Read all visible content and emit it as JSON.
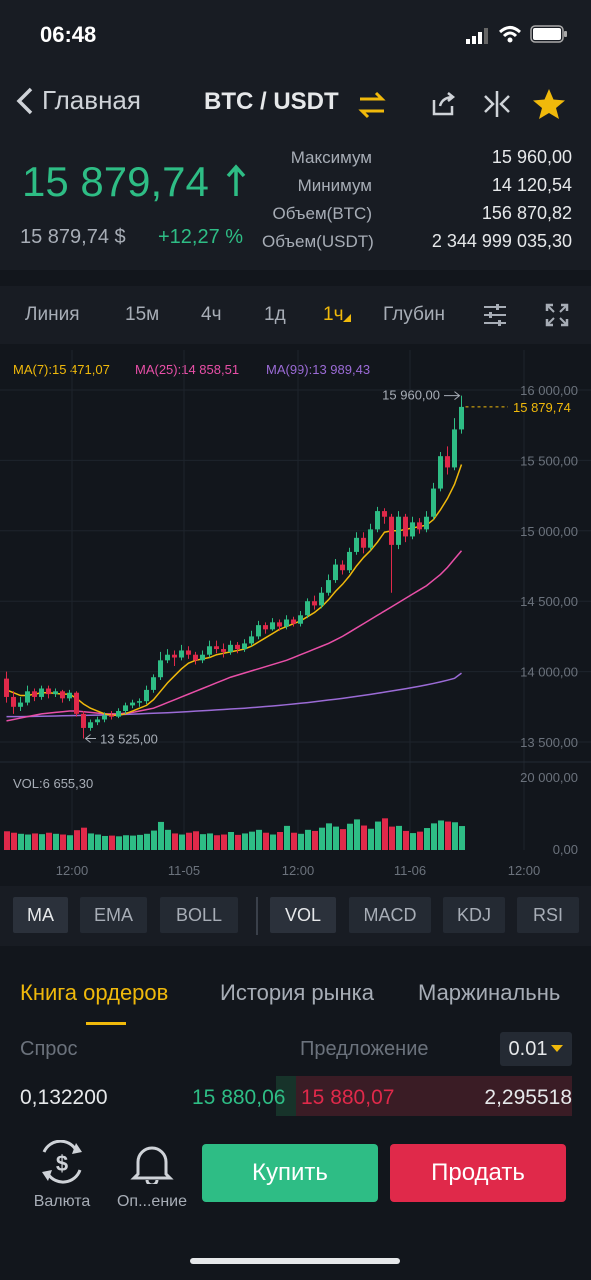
{
  "status_bar": {
    "time": "06:48"
  },
  "nav": {
    "back_label": "Главная",
    "pair": "BTC / USDT"
  },
  "ticker": {
    "last_price": "15 879,74",
    "fiat_price": "15 879,74 $",
    "change": "+12,27 %",
    "stats": [
      {
        "label": "Максимум",
        "value": "15 960,00"
      },
      {
        "label": "Минимум",
        "value": "14 120,54"
      },
      {
        "label": "Объем(BTC)",
        "value": "156 870,82"
      },
      {
        "label": "Объем(USDT)",
        "value": "2 344 999 035,30"
      }
    ]
  },
  "timeframes": [
    "Линия",
    "15м",
    "4ч",
    "1д",
    "1ч",
    "Глубин"
  ],
  "active_timeframe": "1ч",
  "ma_legend": {
    "ma7": "MA(7):15 471,07",
    "ma25": "MA(25):14 858,51",
    "ma99": "MA(99):13 989,43"
  },
  "colors": {
    "up": "#2ebd85",
    "down": "#e0294a",
    "accent": "#f0b90b",
    "ma7": "#f0b90b",
    "ma25": "#e84fa7",
    "ma99": "#9b6bd6"
  },
  "chart_data": {
    "type": "candlestick",
    "y_ticks": [
      "16 000,00",
      "15 500,00",
      "15 000,00",
      "14 500,00",
      "14 000,00",
      "13 500,00"
    ],
    "ylim": [
      13500,
      16000
    ],
    "x_ticks": [
      "12:00",
      "11-05",
      "12:00",
      "11-06",
      "12:00"
    ],
    "current_price_label": "15 879,74",
    "high_marker": "15 960,00",
    "low_marker": "13 525,00",
    "volume_label": "VOL:6 655,30",
    "volume_ticks": [
      "20 000,00",
      "0,00"
    ],
    "candles": [
      [
        13950,
        13820,
        14000,
        13780
      ],
      [
        13820,
        13750,
        13860,
        13700
      ],
      [
        13750,
        13780,
        13820,
        13720
      ],
      [
        13780,
        13860,
        13900,
        13760
      ],
      [
        13860,
        13820,
        13880,
        13790
      ],
      [
        13820,
        13880,
        13900,
        13800
      ],
      [
        13880,
        13840,
        13900,
        13810
      ],
      [
        13840,
        13860,
        13880,
        13820
      ],
      [
        13860,
        13810,
        13870,
        13780
      ],
      [
        13810,
        13850,
        13870,
        13790
      ],
      [
        13850,
        13700,
        13860,
        13680
      ],
      [
        13700,
        13600,
        13720,
        13525
      ],
      [
        13600,
        13640,
        13660,
        13580
      ],
      [
        13640,
        13660,
        13680,
        13620
      ],
      [
        13660,
        13690,
        13710,
        13640
      ],
      [
        13690,
        13680,
        13720,
        13660
      ],
      [
        13680,
        13720,
        13740,
        13670
      ],
      [
        13720,
        13760,
        13780,
        13700
      ],
      [
        13760,
        13780,
        13800,
        13740
      ],
      [
        13780,
        13790,
        13810,
        13750
      ],
      [
        13790,
        13870,
        13900,
        13770
      ],
      [
        13870,
        13960,
        13980,
        13850
      ],
      [
        13960,
        14080,
        14140,
        13940
      ],
      [
        14080,
        14120,
        14160,
        14060
      ],
      [
        14120,
        14100,
        14150,
        14040
      ],
      [
        14100,
        14150,
        14190,
        14080
      ],
      [
        14150,
        14120,
        14180,
        14090
      ],
      [
        14120,
        14080,
        14140,
        14050
      ],
      [
        14080,
        14120,
        14150,
        14060
      ],
      [
        14120,
        14180,
        14220,
        14100
      ],
      [
        14180,
        14160,
        14220,
        14130
      ],
      [
        14160,
        14140,
        14200,
        14100
      ],
      [
        14140,
        14190,
        14220,
        14120
      ],
      [
        14190,
        14160,
        14210,
        14130
      ],
      [
        14160,
        14200,
        14230,
        14140
      ],
      [
        14200,
        14250,
        14290,
        14180
      ],
      [
        14250,
        14330,
        14360,
        14230
      ],
      [
        14330,
        14300,
        14350,
        14270
      ],
      [
        14300,
        14350,
        14380,
        14290
      ],
      [
        14350,
        14320,
        14370,
        14290
      ],
      [
        14320,
        14370,
        14400,
        14300
      ],
      [
        14370,
        14340,
        14390,
        14320
      ],
      [
        14340,
        14400,
        14430,
        14320
      ],
      [
        14400,
        14500,
        14520,
        14380
      ],
      [
        14500,
        14470,
        14540,
        14440
      ],
      [
        14470,
        14560,
        14600,
        14450
      ],
      [
        14560,
        14650,
        14690,
        14540
      ],
      [
        14650,
        14760,
        14800,
        14630
      ],
      [
        14760,
        14720,
        14790,
        14690
      ],
      [
        14720,
        14850,
        14880,
        14700
      ],
      [
        14850,
        14950,
        14990,
        14830
      ],
      [
        14950,
        14880,
        14990,
        14840
      ],
      [
        14880,
        15010,
        15050,
        14860
      ],
      [
        15010,
        15140,
        15170,
        14990
      ],
      [
        15140,
        15100,
        15160,
        15050
      ],
      [
        15100,
        14900,
        15120,
        14560
      ],
      [
        14900,
        15100,
        15140,
        14870
      ],
      [
        15100,
        14960,
        15120,
        14920
      ],
      [
        14960,
        15060,
        15100,
        14940
      ],
      [
        15060,
        15010,
        15090,
        14980
      ],
      [
        15010,
        15100,
        15140,
        14990
      ],
      [
        15100,
        15300,
        15340,
        15080
      ],
      [
        15300,
        15530,
        15560,
        15280
      ],
      [
        15530,
        15450,
        15600,
        15400
      ],
      [
        15450,
        15720,
        15800,
        15430
      ],
      [
        15720,
        15880,
        15960,
        15690
      ]
    ],
    "ma7": [
      13870,
      13850,
      13830,
      13830,
      13840,
      13850,
      13850,
      13845,
      13840,
      13840,
      13810,
      13770,
      13740,
      13720,
      13700,
      13690,
      13690,
      13700,
      13720,
      13740,
      13760,
      13800,
      13860,
      13920,
      13970,
      14020,
      14060,
      14080,
      14090,
      14100,
      14120,
      14130,
      14140,
      14150,
      14160,
      14180,
      14210,
      14240,
      14270,
      14300,
      14320,
      14340,
      14360,
      14390,
      14420,
      14460,
      14510,
      14570,
      14620,
      14680,
      14750,
      14810,
      14860,
      14920,
      14990,
      15000,
      15000,
      15010,
      15020,
      15030,
      15040,
      15080,
      15150,
      15230,
      15330,
      15471
    ],
    "ma25": [
      13650,
      13660,
      13670,
      13680,
      13690,
      13700,
      13705,
      13710,
      13715,
      13720,
      13720,
      13715,
      13710,
      13705,
      13700,
      13700,
      13700,
      13705,
      13710,
      13720,
      13730,
      13740,
      13760,
      13780,
      13800,
      13820,
      13840,
      13860,
      13880,
      13900,
      13920,
      13940,
      13960,
      13975,
      13990,
      14005,
      14020,
      14035,
      14050,
      14065,
      14080,
      14100,
      14120,
      14140,
      14160,
      14180,
      14200,
      14225,
      14250,
      14280,
      14310,
      14340,
      14370,
      14400,
      14430,
      14460,
      14490,
      14520,
      14550,
      14580,
      14610,
      14650,
      14690,
      14740,
      14800,
      14858
    ],
    "ma99": [
      13680,
      13680,
      13680,
      13681,
      13682,
      13683,
      13684,
      13685,
      13686,
      13687,
      13688,
      13689,
      13690,
      13691,
      13692,
      13693,
      13694,
      13696,
      13698,
      13700,
      13702,
      13704,
      13706,
      13708,
      13710,
      13713,
      13716,
      13719,
      13722,
      13725,
      13728,
      13731,
      13734,
      13737,
      13740,
      13744,
      13748,
      13752,
      13756,
      13760,
      13765,
      13770,
      13775,
      13780,
      13786,
      13792,
      13798,
      13804,
      13810,
      13817,
      13824,
      13831,
      13838,
      13846,
      13854,
      13862,
      13870,
      13878,
      13887,
      13896,
      13906,
      13916,
      13927,
      13939,
      13952,
      13989
    ],
    "volumes": [
      5200,
      4800,
      4500,
      4300,
      4600,
      4400,
      4800,
      4500,
      4300,
      4100,
      5500,
      6200,
      4600,
      4300,
      3900,
      4000,
      3800,
      4100,
      4000,
      4200,
      4500,
      5400,
      7800,
      5600,
      4600,
      4300,
      4800,
      5200,
      4400,
      4600,
      4100,
      4300,
      5000,
      4200,
      4600,
      5100,
      5600,
      4800,
      4300,
      5000,
      6700,
      4800,
      4500,
      5600,
      5300,
      6200,
      7400,
      6500,
      5800,
      7300,
      8500,
      6800,
      5900,
      7900,
      8800,
      6500,
      6700,
      5300,
      4700,
      5100,
      6100,
      7400,
      8200,
      7900,
      7700,
      6655
    ]
  },
  "indicators_main": [
    "MA",
    "EMA",
    "BOLL"
  ],
  "indicators_sub": [
    "VOL",
    "MACD",
    "KDJ",
    "RSI"
  ],
  "orderbook": {
    "tabs": [
      "Книга ордеров",
      "История рынка",
      "Маржинальнь"
    ],
    "bid_header": "Спрос",
    "ask_header": "Предложение",
    "precision": "0.01",
    "row": {
      "bid_amount": "0,132200",
      "bid_price": "15 880,06",
      "ask_price": "15 880,07",
      "ask_amount": "2,295518"
    }
  },
  "bottom_bar": {
    "currency_label": "Валюта",
    "alert_label": "Оп...ение",
    "buy_label": "Купить",
    "sell_label": "Продать"
  }
}
